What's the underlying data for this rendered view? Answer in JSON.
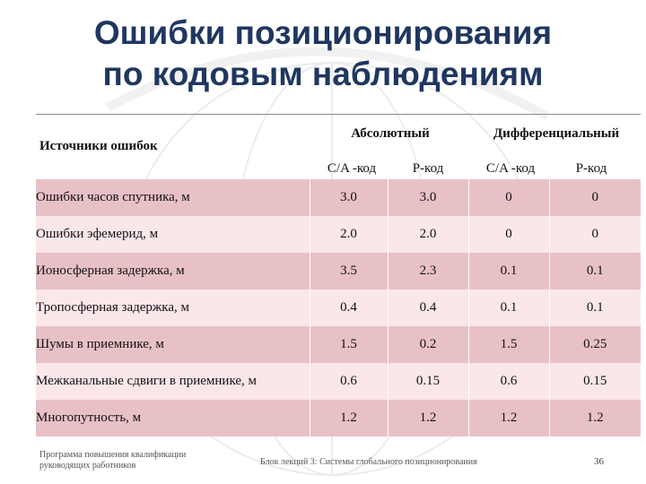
{
  "title_line1": "Ошибки позиционирования",
  "title_line2": "по кодовым наблюдениям",
  "table": {
    "sources_header": "Источники ошибок",
    "group_absolute": "Абсолютный",
    "group_differential": "Дифференциальный",
    "sub_headers": [
      "C/A -код",
      "P-код",
      "C/A -код",
      "P-код"
    ],
    "rows": [
      {
        "source": "Ошибки часов спутника, м",
        "values": [
          "3.0",
          "3.0",
          "0",
          "0"
        ]
      },
      {
        "source": "Ошибки эфемерид, м",
        "values": [
          "2.0",
          "2.0",
          "0",
          "0"
        ]
      },
      {
        "source": "Ионосферная задержка, м",
        "values": [
          "3.5",
          "2.3",
          "0.1",
          "0.1"
        ]
      },
      {
        "source": "Тропосферная задержка, м",
        "values": [
          "0.4",
          "0.4",
          "0.1",
          "0.1"
        ]
      },
      {
        "source": "Шумы в приемнике, м",
        "values": [
          "1.5",
          "0.2",
          "1.5",
          "0.25"
        ]
      },
      {
        "source": "Межканальные сдвиги в приемнике, м",
        "values": [
          "0.6",
          "0.15",
          "0.6",
          "0.15"
        ]
      },
      {
        "source": "Многопутность, м",
        "values": [
          "1.2",
          "1.2",
          "1.2",
          "1.2"
        ]
      }
    ]
  },
  "footer": {
    "left": "Программа повышения квалификации руководящих работников",
    "center": "Блок лекций 3: Системы глобального позиционирования",
    "page": "36"
  }
}
